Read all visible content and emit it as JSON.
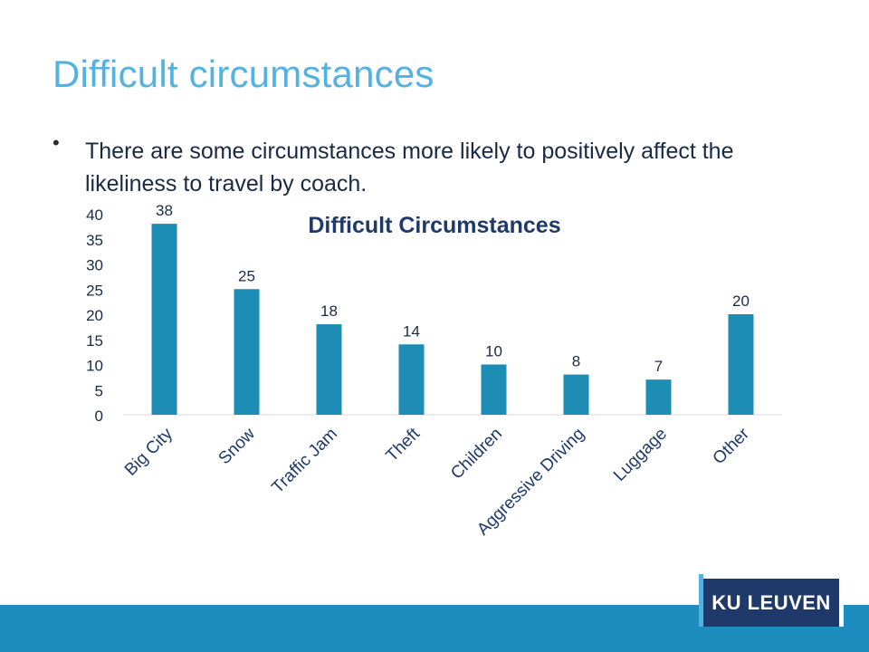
{
  "slide": {
    "title": "Difficult circumstances",
    "bullet": "There are some circumstances more likely to positively affect the likeliness to travel by coach."
  },
  "logo": {
    "text": "KU LEUVEN"
  },
  "colors": {
    "title": "#52b3e3",
    "bar": "#1e8db5",
    "chart_title": "#1f3a6a",
    "footer": "#1d8dbf"
  },
  "chart_data": {
    "type": "bar",
    "title": "Difficult Circumstances",
    "categories": [
      "Big City",
      "Snow",
      "Traffic Jam",
      "Theft",
      "Children",
      "Aggressive Driving",
      "Luggage",
      "Other"
    ],
    "values": [
      38,
      25,
      18,
      14,
      10,
      8,
      7,
      20
    ],
    "ylim": [
      0,
      40
    ],
    "yticks": [
      0,
      5,
      10,
      15,
      20,
      25,
      30,
      35,
      40
    ],
    "grid": false,
    "legend": "none",
    "data_labels": true
  }
}
